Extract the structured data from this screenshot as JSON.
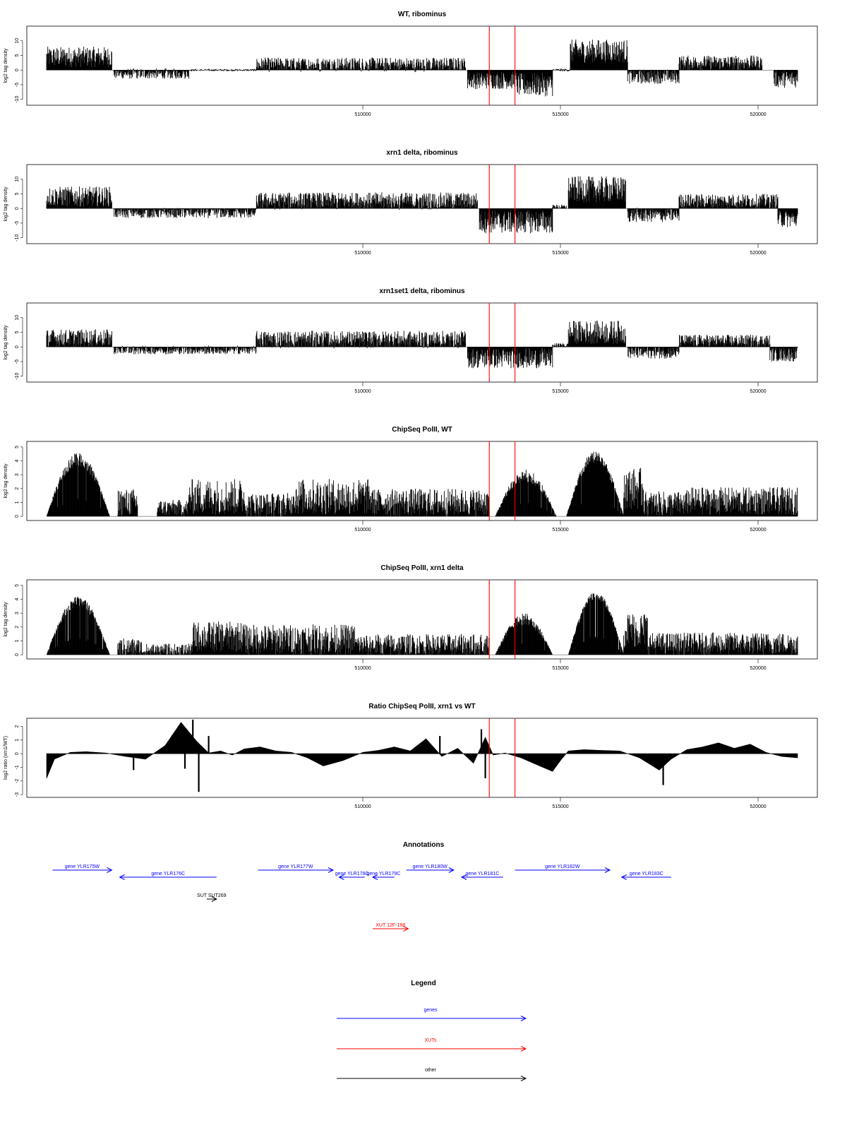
{
  "chart_data": [
    {
      "type": "bar",
      "title": "WT, ribominus",
      "ylabel": "log2 tag density",
      "xlim": [
        501500,
        521500
      ],
      "ylim": [
        -12,
        15
      ],
      "yticks": [
        -10,
        -5,
        0,
        5,
        10
      ],
      "xticks": [
        510000,
        515000,
        520000
      ],
      "markers_x": [
        513200,
        513850
      ],
      "segments": [
        {
          "start": 502000,
          "end": 503650,
          "mean": 4.5,
          "amp": 3.5
        },
        {
          "start": 503700,
          "end": 505600,
          "mean": -1.2,
          "amp": 1.8
        },
        {
          "start": 505600,
          "end": 507300,
          "mean": 0,
          "amp": 0.4
        },
        {
          "start": 507300,
          "end": 512600,
          "mean": 1.8,
          "amp": 2.5
        },
        {
          "start": 512650,
          "end": 513900,
          "mean": -3.5,
          "amp": 3.0
        },
        {
          "start": 513900,
          "end": 514800,
          "mean": -5.0,
          "amp": 4.0
        },
        {
          "start": 514800,
          "end": 515250,
          "mean": 0,
          "amp": 0.5
        },
        {
          "start": 515250,
          "end": 516700,
          "mean": 6.5,
          "amp": 4.0
        },
        {
          "start": 516700,
          "end": 518000,
          "mean": -2.2,
          "amp": 2.5
        },
        {
          "start": 518000,
          "end": 520100,
          "mean": 2.5,
          "amp": 2.5
        },
        {
          "start": 520400,
          "end": 521000,
          "mean": -3.0,
          "amp": 3.0
        }
      ]
    },
    {
      "type": "bar",
      "title": "xrn1 delta, ribominus",
      "ylabel": "log2 tag density",
      "xlim": [
        501500,
        521500
      ],
      "ylim": [
        -12,
        15
      ],
      "yticks": [
        -10,
        -5,
        0,
        5,
        10
      ],
      "xticks": [
        510000,
        515000,
        520000
      ],
      "markers_x": [
        513200,
        513850
      ],
      "segments": [
        {
          "start": 502000,
          "end": 503650,
          "mean": 4.0,
          "amp": 3.5
        },
        {
          "start": 503700,
          "end": 507300,
          "mean": -1.5,
          "amp": 1.8
        },
        {
          "start": 507300,
          "end": 512900,
          "mean": 2.5,
          "amp": 3.0
        },
        {
          "start": 512950,
          "end": 514800,
          "mean": -4.5,
          "amp": 4.0
        },
        {
          "start": 514800,
          "end": 515150,
          "mean": 0.5,
          "amp": 0.8
        },
        {
          "start": 515200,
          "end": 516650,
          "mean": 6.5,
          "amp": 4.5
        },
        {
          "start": 516700,
          "end": 518000,
          "mean": -2.2,
          "amp": 2.5
        },
        {
          "start": 518000,
          "end": 520500,
          "mean": 2.5,
          "amp": 2.5
        },
        {
          "start": 520500,
          "end": 521000,
          "mean": -3.5,
          "amp": 3.0
        }
      ]
    },
    {
      "type": "bar",
      "title": "xrn1set1 delta, ribominus",
      "ylabel": "log2 tag density",
      "xlim": [
        501500,
        521500
      ],
      "ylim": [
        -12,
        15
      ],
      "yticks": [
        -10,
        -5,
        0,
        5,
        10
      ],
      "xticks": [
        510000,
        515000,
        520000
      ],
      "markers_x": [
        513200,
        513850
      ],
      "segments": [
        {
          "start": 502000,
          "end": 503650,
          "mean": 3.0,
          "amp": 3.0
        },
        {
          "start": 503700,
          "end": 507300,
          "mean": -1.0,
          "amp": 1.5
        },
        {
          "start": 507300,
          "end": 512600,
          "mean": 2.5,
          "amp": 3.0
        },
        {
          "start": 512650,
          "end": 514800,
          "mean": -3.8,
          "amp": 3.5
        },
        {
          "start": 514800,
          "end": 515200,
          "mean": 0.5,
          "amp": 0.8
        },
        {
          "start": 515200,
          "end": 516650,
          "mean": 5.0,
          "amp": 4.0
        },
        {
          "start": 516700,
          "end": 518000,
          "mean": -1.8,
          "amp": 2.2
        },
        {
          "start": 518000,
          "end": 520300,
          "mean": 2.0,
          "amp": 2.2
        },
        {
          "start": 520300,
          "end": 521000,
          "mean": -2.5,
          "amp": 2.5
        }
      ]
    },
    {
      "type": "bar",
      "title": "ChipSeq PolII, WT",
      "ylabel": "log2 tag density",
      "xlim": [
        501500,
        521500
      ],
      "ylim": [
        -0.3,
        5.4
      ],
      "yticks": [
        0,
        1,
        2,
        3,
        4,
        5
      ],
      "xticks": [
        510000,
        515000,
        520000
      ],
      "markers_x": [
        513200,
        513850
      ],
      "segments": [
        {
          "start": 502000,
          "end": 503600,
          "shape": "dome",
          "peak": 4.6,
          "amp": 0.6
        },
        {
          "start": 503800,
          "end": 504300,
          "mean": 1.0,
          "amp": 1.0
        },
        {
          "start": 504800,
          "end": 505600,
          "mean": 0.6,
          "amp": 0.6
        },
        {
          "start": 505600,
          "end": 507000,
          "mean": 1.4,
          "amp": 1.3
        },
        {
          "start": 507000,
          "end": 508200,
          "mean": 0.8,
          "amp": 0.9
        },
        {
          "start": 508200,
          "end": 510200,
          "mean": 1.4,
          "amp": 1.3
        },
        {
          "start": 510200,
          "end": 513200,
          "mean": 1.0,
          "amp": 1.0
        },
        {
          "start": 513350,
          "end": 514900,
          "shape": "dome",
          "peak": 3.4,
          "amp": 0.8
        },
        {
          "start": 515150,
          "end": 516600,
          "shape": "dome",
          "peak": 4.7,
          "amp": 0.5
        },
        {
          "start": 516600,
          "end": 517100,
          "mean": 2.0,
          "amp": 1.5
        },
        {
          "start": 517100,
          "end": 518200,
          "mean": 0.9,
          "amp": 0.9
        },
        {
          "start": 518200,
          "end": 521000,
          "mean": 1.1,
          "amp": 1.0
        }
      ]
    },
    {
      "type": "bar",
      "title": "ChipSeq PolII, xrn1 delta",
      "ylabel": "log2 tag density",
      "xlim": [
        501500,
        521500
      ],
      "ylim": [
        -0.3,
        5.4
      ],
      "yticks": [
        0,
        1,
        2,
        3,
        4,
        5
      ],
      "xticks": [
        510000,
        515000,
        520000
      ],
      "markers_x": [
        513200,
        513850
      ],
      "segments": [
        {
          "start": 502000,
          "end": 503600,
          "shape": "dome",
          "peak": 4.2,
          "amp": 0.5
        },
        {
          "start": 503800,
          "end": 504400,
          "mean": 0.5,
          "amp": 0.7
        },
        {
          "start": 504400,
          "end": 505700,
          "mean": 0.3,
          "amp": 0.5
        },
        {
          "start": 505700,
          "end": 507000,
          "mean": 1.3,
          "amp": 1.1
        },
        {
          "start": 507000,
          "end": 509800,
          "mean": 1.1,
          "amp": 1.1
        },
        {
          "start": 509800,
          "end": 513200,
          "mean": 0.7,
          "amp": 0.8
        },
        {
          "start": 513350,
          "end": 514800,
          "shape": "dome",
          "peak": 3.0,
          "amp": 0.8
        },
        {
          "start": 515200,
          "end": 516600,
          "shape": "dome",
          "peak": 4.6,
          "amp": 0.4
        },
        {
          "start": 516600,
          "end": 517200,
          "mean": 1.8,
          "amp": 1.3
        },
        {
          "start": 517200,
          "end": 521000,
          "mean": 0.8,
          "amp": 0.8
        }
      ]
    },
    {
      "type": "area",
      "title": "Ratio ChipSeq PolII, xrn1 vs WT",
      "ylabel": "log2 ratio (xrn1/WT)",
      "xlim": [
        501500,
        521500
      ],
      "ylim": [
        -3.2,
        2.6
      ],
      "yticks": [
        -3,
        -2,
        -1,
        0,
        1,
        2
      ],
      "xticks": [
        510000,
        515000,
        520000
      ],
      "markers_x": [
        513200,
        513850
      ],
      "x": [
        502000,
        502200,
        502600,
        503000,
        503500,
        504000,
        504500,
        505000,
        505400,
        505800,
        506100,
        506400,
        506700,
        507000,
        507400,
        507800,
        508200,
        508600,
        509000,
        509500,
        510000,
        510400,
        510800,
        511200,
        511600,
        512000,
        512400,
        512800,
        513100,
        513300,
        513600,
        514000,
        514400,
        514800,
        515000,
        515200,
        515600,
        516000,
        516500,
        517000,
        517500,
        517800,
        518200,
        518600,
        519000,
        519400,
        519800,
        520200,
        520600,
        521000
      ],
      "y": [
        -1.8,
        -0.4,
        0.1,
        0.15,
        0.05,
        -0.2,
        -0.4,
        0.6,
        2.3,
        0.9,
        0.05,
        0.2,
        -0.1,
        0.35,
        0.5,
        0.2,
        0.1,
        -0.3,
        -0.9,
        -0.5,
        0.1,
        0.25,
        0.5,
        0.2,
        1.1,
        -0.2,
        0.4,
        -0.7,
        1.2,
        -0.1,
        0.05,
        -0.3,
        -0.8,
        -1.3,
        -0.5,
        0.2,
        0.3,
        0.25,
        0.2,
        -0.3,
        -1.2,
        -0.4,
        0.3,
        0.5,
        0.8,
        0.4,
        0.7,
        0.1,
        -0.2,
        -0.3
      ],
      "spikes": [
        {
          "x": 505700,
          "y": 2.5
        },
        {
          "x": 505850,
          "y": -2.8
        },
        {
          "x": 506100,
          "y": 1.3
        },
        {
          "x": 505500,
          "y": -1.1
        },
        {
          "x": 511950,
          "y": 1.3
        },
        {
          "x": 513000,
          "y": 1.8
        },
        {
          "x": 513100,
          "y": -1.8
        },
        {
          "x": 517600,
          "y": -2.3
        },
        {
          "x": 504200,
          "y": -1.2
        }
      ]
    }
  ],
  "annotations": {
    "title": "Annotations",
    "xlim": [
      501500,
      521500
    ],
    "items": [
      {
        "label": "gene YLR175W",
        "start": 502150,
        "end": 503650,
        "strand": "+",
        "color": "#0000ff",
        "row": 0
      },
      {
        "label": "gene YLR176C",
        "start": 503850,
        "end": 506300,
        "strand": "-",
        "color": "#0000ff",
        "row": 1
      },
      {
        "label": "gene YLR177W",
        "start": 507350,
        "end": 509250,
        "strand": "+",
        "color": "#0000ff",
        "row": 0
      },
      {
        "label": "gene YLR178C",
        "start": 509400,
        "end": 510050,
        "strand": "-",
        "color": "#0000ff",
        "row": 1
      },
      {
        "label": "gene YLR179C",
        "start": 510250,
        "end": 510800,
        "strand": "-",
        "color": "#0000ff",
        "row": 1
      },
      {
        "label": "gene YLR180W",
        "start": 511100,
        "end": 512300,
        "strand": "+",
        "color": "#0000ff",
        "row": 0
      },
      {
        "label": "gene YLR181C",
        "start": 512500,
        "end": 513550,
        "strand": "-",
        "color": "#0000ff",
        "row": 1
      },
      {
        "label": "gene YLR182W",
        "start": 513850,
        "end": 516250,
        "strand": "+",
        "color": "#0000ff",
        "row": 0
      },
      {
        "label": "gene YLR183C",
        "start": 516550,
        "end": 517800,
        "strand": "-",
        "color": "#0000ff",
        "row": 1
      },
      {
        "label": "SUT SUT269",
        "start": 506050,
        "end": 506300,
        "strand": "+",
        "color": "#000000",
        "row": 2
      },
      {
        "label": "XUT 12F-198",
        "start": 510250,
        "end": 511150,
        "strand": "+",
        "color": "#ff0000",
        "row": 3
      }
    ]
  },
  "legend": {
    "title": "Legend",
    "items": [
      {
        "label": "genes",
        "color": "#0000ff"
      },
      {
        "label": "XUTs",
        "color": "#ff0000"
      },
      {
        "label": "other",
        "color": "#000000"
      }
    ]
  },
  "colors": {
    "marker": "#ff0000",
    "bars": "#000000",
    "gene": "#0000ff",
    "xut": "#ff0000",
    "other": "#000000"
  }
}
